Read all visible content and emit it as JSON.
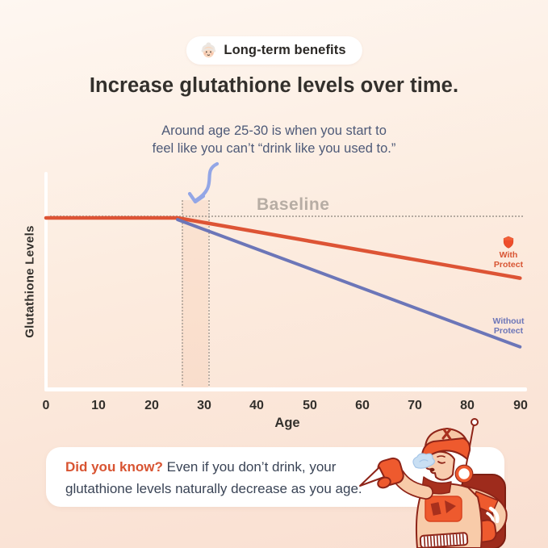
{
  "badge": {
    "icon": "older-woman-emoji",
    "label": "Long-term benefits"
  },
  "title": "Increase glutathione levels over time.",
  "annotation": {
    "line1": "Around age 25-30 is when you start to",
    "line2": "feel like you can’t “drink like you used to.”"
  },
  "chart": {
    "y_axis_label": "Glutathione Levels",
    "x_axis_label": "Age",
    "baseline_label": "Baseline",
    "x_tick_labels": [
      "0",
      "10",
      "20",
      "30",
      "40",
      "50",
      "60",
      "70",
      "80",
      "90"
    ],
    "legend_with": "With Protect",
    "legend_without": "Without Protect"
  },
  "chart_data": {
    "type": "line",
    "title": "Increase glutathione levels over time.",
    "xlabel": "Age",
    "ylabel": "Glutathione Levels",
    "xlim": [
      0,
      90
    ],
    "x_ticks": [
      0,
      10,
      20,
      30,
      40,
      50,
      60,
      70,
      80,
      90
    ],
    "y_axis_numeric_labels": false,
    "grid": false,
    "baseline": {
      "label": "Baseline",
      "value": 100,
      "style": "dotted"
    },
    "highlight_age_range": [
      25,
      30
    ],
    "annotation_arrow_target_age": 25,
    "series": [
      {
        "name": "With Protect",
        "color": "#DD5435",
        "points": [
          [
            0,
            100
          ],
          [
            25,
            100
          ],
          [
            90,
            65
          ]
        ]
      },
      {
        "name": "Without Protect",
        "color": "#6C76B8",
        "points": [
          [
            25,
            99
          ],
          [
            90,
            25
          ]
        ]
      }
    ]
  },
  "did_you_know": {
    "highlight": "Did you know?",
    "line1": " Even if you don’t drink, your",
    "line2": "glutathione levels naturally decrease as you age."
  },
  "colors": {
    "accent_orange": "#DD5435",
    "accent_blue": "#6C76B8",
    "baseline_gray": "#B7ADA4",
    "title_dark": "#33302C",
    "annotation_slate": "#4E5A78",
    "arrow_blue": "#93A6E6",
    "card_bg": "#FFFFFF",
    "bg_top": "#FEF7F1",
    "bg_bottom": "#F9DFD1"
  }
}
